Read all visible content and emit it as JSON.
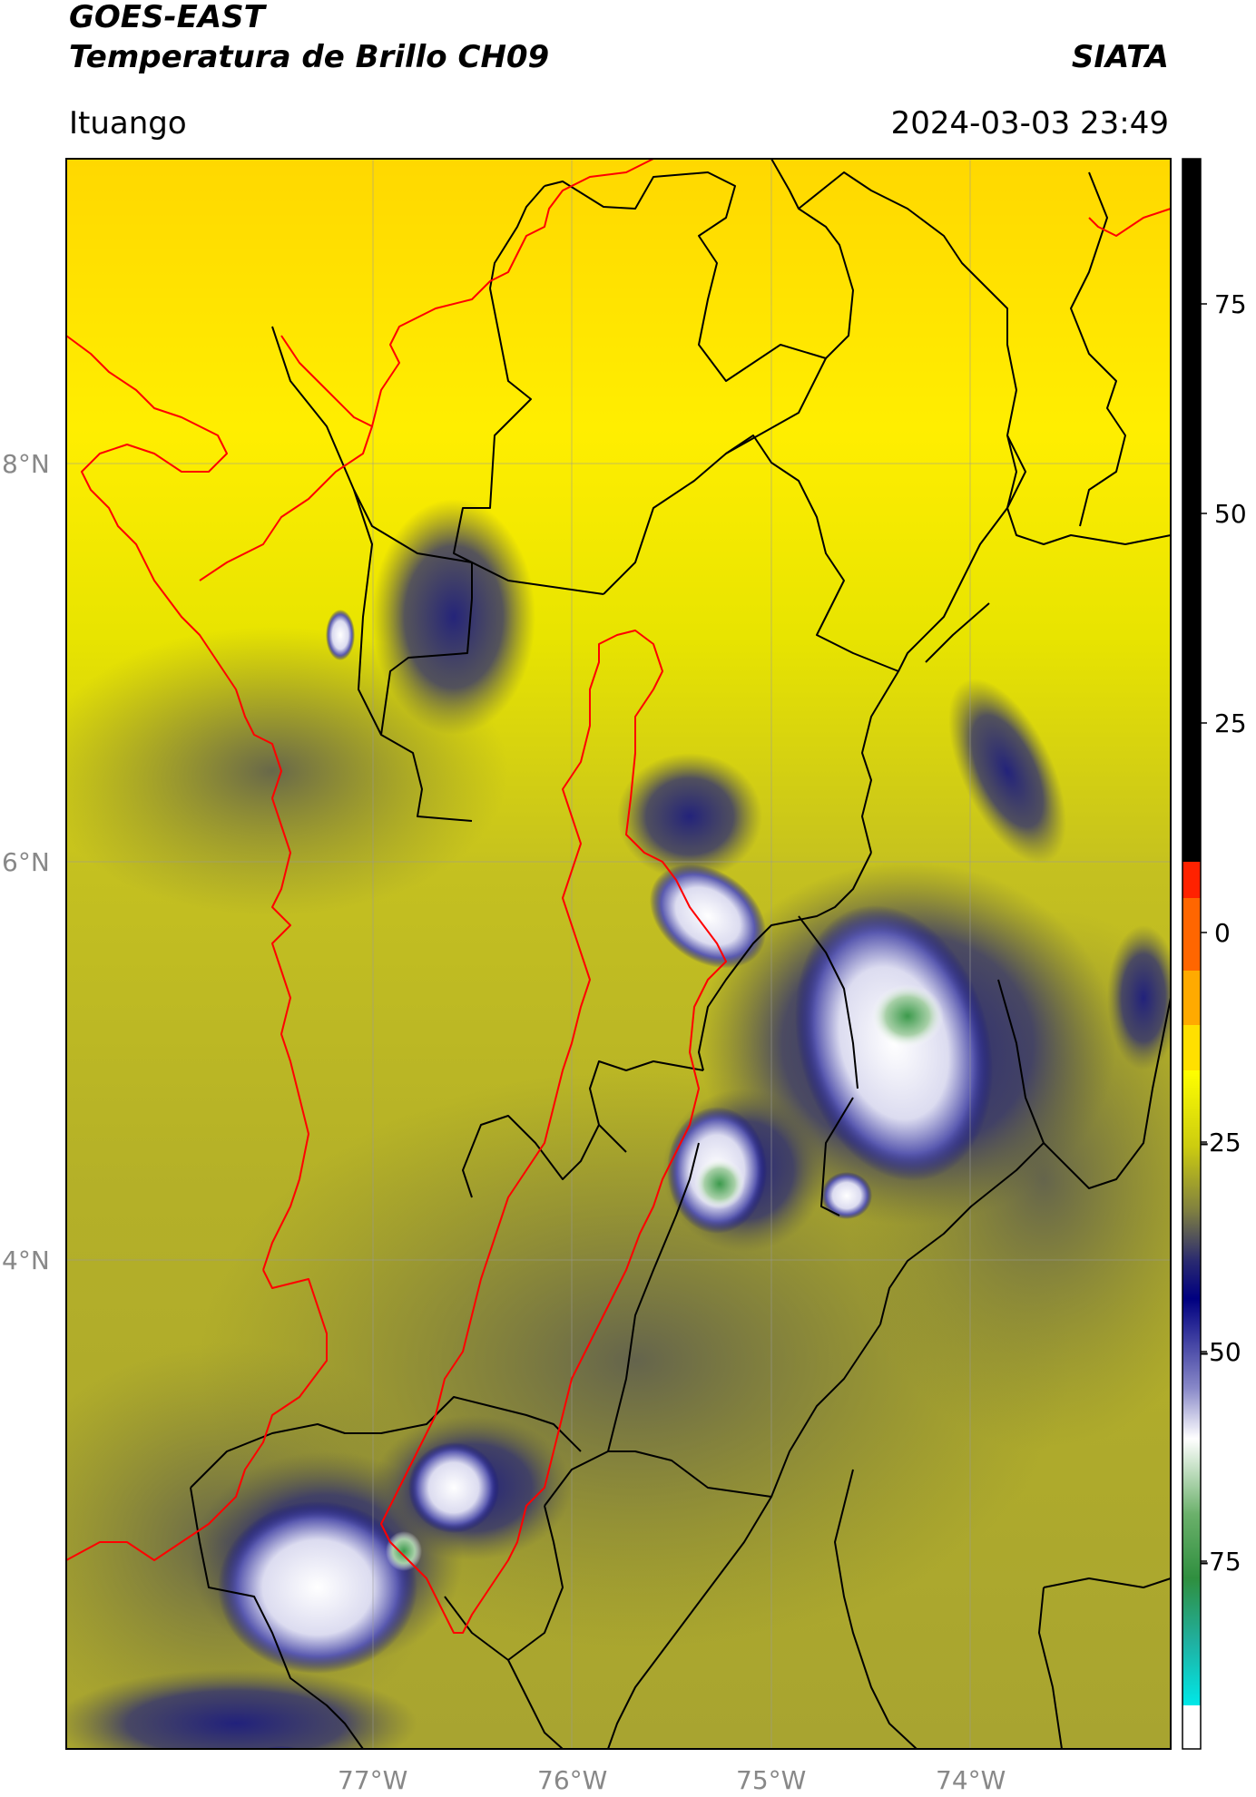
{
  "header": {
    "satellite": "GOES-EAST",
    "product": "Temperatura de Brillo CH09",
    "organization": "SIATA",
    "location": "Ituango",
    "datetime": "2024-03-03 23:49"
  },
  "map": {
    "lon_labels": [
      "77°W",
      "76°W",
      "75°W",
      "74°W"
    ],
    "lat_labels": [
      "8°N",
      "6°N",
      "4°N"
    ]
  },
  "colorbar": {
    "labels": [
      "75",
      "50",
      "25",
      "0",
      "-25",
      "-50",
      "-75"
    ],
    "colors": {
      "black": "#000000",
      "red": "#ff2200",
      "orange": "#ff9900",
      "yellow": "#ffff00",
      "olive": "#b0b020",
      "dark_olive": "#5a5a3a",
      "navy": "#000080",
      "lavender": "#c8c8e8",
      "white": "#ffffff",
      "green": "#2f8f3f",
      "cyan": "#00e0e0"
    }
  }
}
